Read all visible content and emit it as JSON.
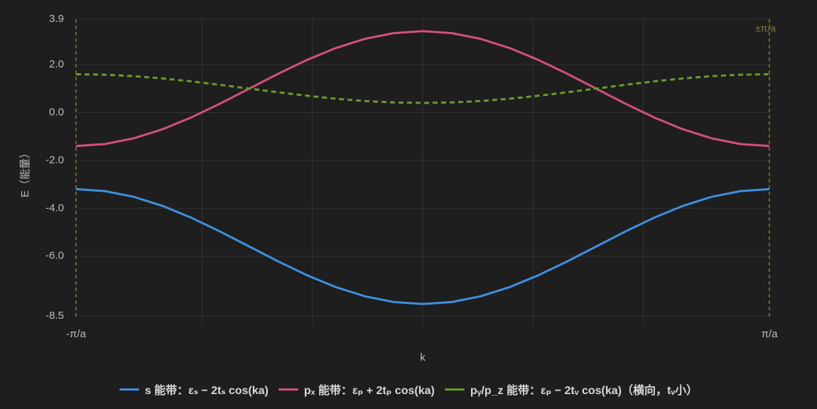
{
  "chart_data": {
    "type": "line",
    "x_label": "k",
    "y_label": "E（能量）",
    "annotation": "±π/a",
    "x": [
      -3.1416,
      -2.8798,
      -2.618,
      -2.3562,
      -2.0944,
      -1.8326,
      -1.5708,
      -1.309,
      -1.0472,
      -0.7854,
      -0.5236,
      -0.2618,
      0,
      0.2618,
      0.5236,
      0.7854,
      1.0472,
      1.309,
      1.5708,
      1.8326,
      2.0944,
      2.3562,
      2.618,
      2.8798,
      3.1416
    ],
    "series": [
      {
        "name": "s 能带：εₛ − 2tₛ cos(ka)",
        "color": "#3d8fe0",
        "style": "solid",
        "values": [
          -3.2,
          -3.282,
          -3.522,
          -3.903,
          -4.4,
          -4.979,
          -5.6,
          -6.221,
          -6.8,
          -7.297,
          -7.678,
          -7.918,
          -8.0,
          -7.918,
          -7.678,
          -7.297,
          -6.8,
          -6.221,
          -5.6,
          -4.979,
          -4.4,
          -3.903,
          -3.522,
          -3.282,
          -3.2
        ]
      },
      {
        "name": "pₓ 能带：εₚ + 2tₚ cos(ka)",
        "color": "#d4507b",
        "style": "solid",
        "values": [
          -1.4,
          -1.318,
          -1.078,
          -0.697,
          -0.2,
          0.379,
          1.0,
          1.621,
          2.2,
          2.697,
          3.078,
          3.318,
          3.4,
          3.318,
          3.078,
          2.697,
          2.2,
          1.621,
          1.0,
          0.379,
          -0.2,
          -0.697,
          -1.078,
          -1.318,
          -1.4
        ]
      },
      {
        "name": "pᵧ/p_z 能带：εₚ − 2tᵥ cos(ka)（横向，tᵥ小）",
        "color": "#6a9a2c",
        "style": "dashed",
        "values": [
          1.6,
          1.58,
          1.52,
          1.424,
          1.3,
          1.155,
          1.0,
          0.845,
          0.7,
          0.576,
          0.48,
          0.42,
          0.4,
          0.42,
          0.48,
          0.576,
          0.7,
          0.845,
          1.0,
          1.155,
          1.3,
          1.424,
          1.52,
          1.58,
          1.6
        ]
      }
    ],
    "xlim": [
      -3.1416,
      3.1416
    ],
    "xticks": [
      {
        "value": -3.1416,
        "label": "-π/a"
      },
      {
        "value": 3.1416,
        "label": "π/a"
      }
    ],
    "xgrid": [
      -2,
      -1,
      0,
      1,
      2
    ],
    "ylim": [
      -8.5,
      3.9
    ],
    "yticks": [
      {
        "value": 3.9,
        "label": "3.9"
      },
      {
        "value": 2.0,
        "label": "2.0"
      },
      {
        "value": 0.0,
        "label": "0.0"
      },
      {
        "value": -2.0,
        "label": "-2.0"
      },
      {
        "value": -4.0,
        "label": "-4.0"
      },
      {
        "value": -6.0,
        "label": "-6.0"
      },
      {
        "value": -8.5,
        "label": "-8.5"
      }
    ],
    "grid": true,
    "boundary_color": "#857a35"
  }
}
